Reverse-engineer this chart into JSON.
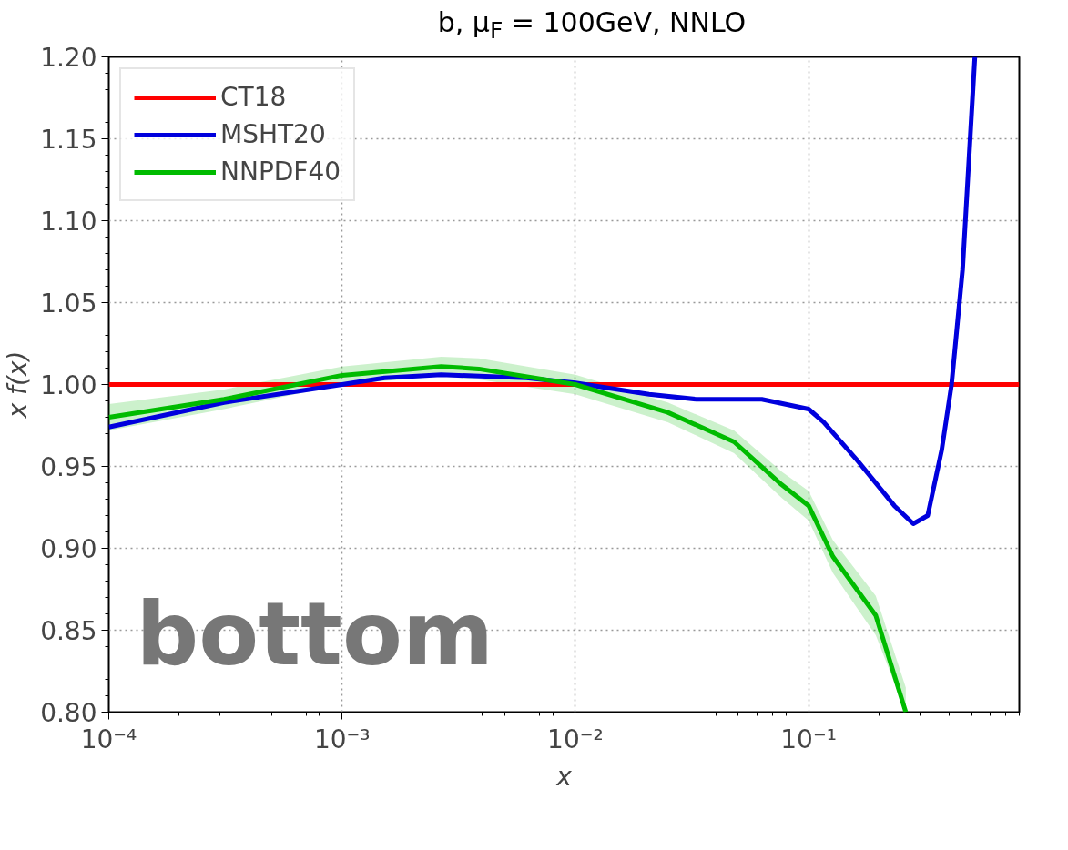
{
  "chart_data": {
    "type": "line",
    "title": "b, μ$_{F}$ = 100GeV, NNLO",
    "xlabel": "x",
    "ylabel": "x f(x)",
    "log": "x",
    "xlim": [
      0.0001,
      0.8
    ],
    "ylim": [
      0.8,
      1.2
    ],
    "xticks": [
      {
        "value": 0.0001,
        "label": "10⁻⁴"
      },
      {
        "value": 0.001,
        "label": "10⁻³"
      },
      {
        "value": 0.01,
        "label": "10⁻²"
      },
      {
        "value": 0.1,
        "label": "10⁻¹"
      }
    ],
    "yticks": [
      {
        "value": 0.8,
        "label": "0.80"
      },
      {
        "value": 0.85,
        "label": "0.85"
      },
      {
        "value": 0.9,
        "label": "0.90"
      },
      {
        "value": 0.95,
        "label": "0.95"
      },
      {
        "value": 1.0,
        "label": "1.00"
      },
      {
        "value": 1.05,
        "label": "1.05"
      },
      {
        "value": 1.1,
        "label": "1.10"
      },
      {
        "value": 1.15,
        "label": "1.15"
      },
      {
        "value": 1.2,
        "label": "1.20"
      }
    ],
    "grid": true,
    "legend": "top left",
    "annotations": [
      "bottom"
    ],
    "series": [
      {
        "name": "CT18",
        "color": "#ff0000",
        "x": [
          0.0001,
          0.8
        ],
        "values": [
          1.0,
          1.0
        ]
      },
      {
        "name": "MSHT20",
        "color": "#0000dd",
        "x": [
          0.0001,
          0.000312,
          0.001,
          0.00152,
          0.00266,
          0.00617,
          0.01,
          0.0207,
          0.033,
          0.063,
          0.1,
          0.116,
          0.161,
          0.233,
          0.281,
          0.324,
          0.372,
          0.41,
          0.457,
          0.516
        ],
        "values": [
          0.974,
          0.989,
          1.0,
          1.004,
          1.006,
          1.004,
          1.001,
          0.994,
          0.991,
          0.991,
          0.985,
          0.977,
          0.954,
          0.926,
          0.915,
          0.92,
          0.96,
          1.0,
          1.07,
          1.2
        ]
      },
      {
        "name": "NNPDF40",
        "color": "#00bb00",
        "x": [
          0.0001,
          0.000312,
          0.001,
          0.00266,
          0.00386,
          0.01,
          0.0249,
          0.0479,
          0.0764,
          0.1,
          0.127,
          0.194,
          0.261
        ],
        "values": [
          0.98,
          0.991,
          1.0056,
          1.011,
          1.0095,
          1.0,
          0.983,
          0.965,
          0.939,
          0.926,
          0.895,
          0.859,
          0.8
        ],
        "lower": [
          0.972,
          0.985,
          1.0,
          1.005,
          1.003,
          0.994,
          0.977,
          0.958,
          0.931,
          0.917,
          0.885,
          0.847,
          0.8
        ],
        "upper": [
          0.988,
          0.997,
          1.011,
          1.017,
          1.016,
          1.006,
          0.989,
          0.972,
          0.947,
          0.935,
          0.905,
          0.871,
          0.815
        ]
      }
    ]
  }
}
